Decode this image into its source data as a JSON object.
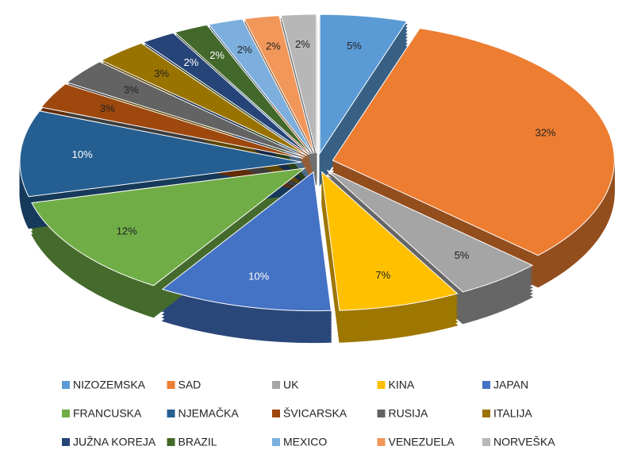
{
  "chart_data": {
    "type": "pie",
    "categories": [
      "NIZOZEMSKA",
      "SAD",
      "UK",
      "KINA",
      "JAPAN",
      "FRANCUSKA",
      "NJEMAČKA",
      "ŠVICARSKA",
      "RUSIJA",
      "ITALIJA",
      "JUŽNA KOREJA",
      "BRAZIL",
      "MEXICO",
      "VENEZUELA",
      "NORVEŠKA"
    ],
    "values": [
      5,
      32,
      5,
      7,
      10,
      12,
      10,
      3,
      3,
      3,
      2,
      2,
      2,
      2,
      2
    ],
    "value_labels": [
      "5%",
      "32%",
      "5%",
      "7%",
      "10%",
      "12%",
      "10%",
      "3%",
      "3%",
      "3%",
      "2%",
      "2%",
      "2%",
      "2%",
      "2%"
    ],
    "colors": [
      "#5b9bd5",
      "#ed7d31",
      "#a5a5a5",
      "#ffc000",
      "#4472c4",
      "#70ad47",
      "#255e91",
      "#9e480e",
      "#636363",
      "#997300",
      "#264478",
      "#43682b",
      "#7cafdd",
      "#f1975a",
      "#b7b7b7"
    ],
    "legend": "bottom"
  }
}
